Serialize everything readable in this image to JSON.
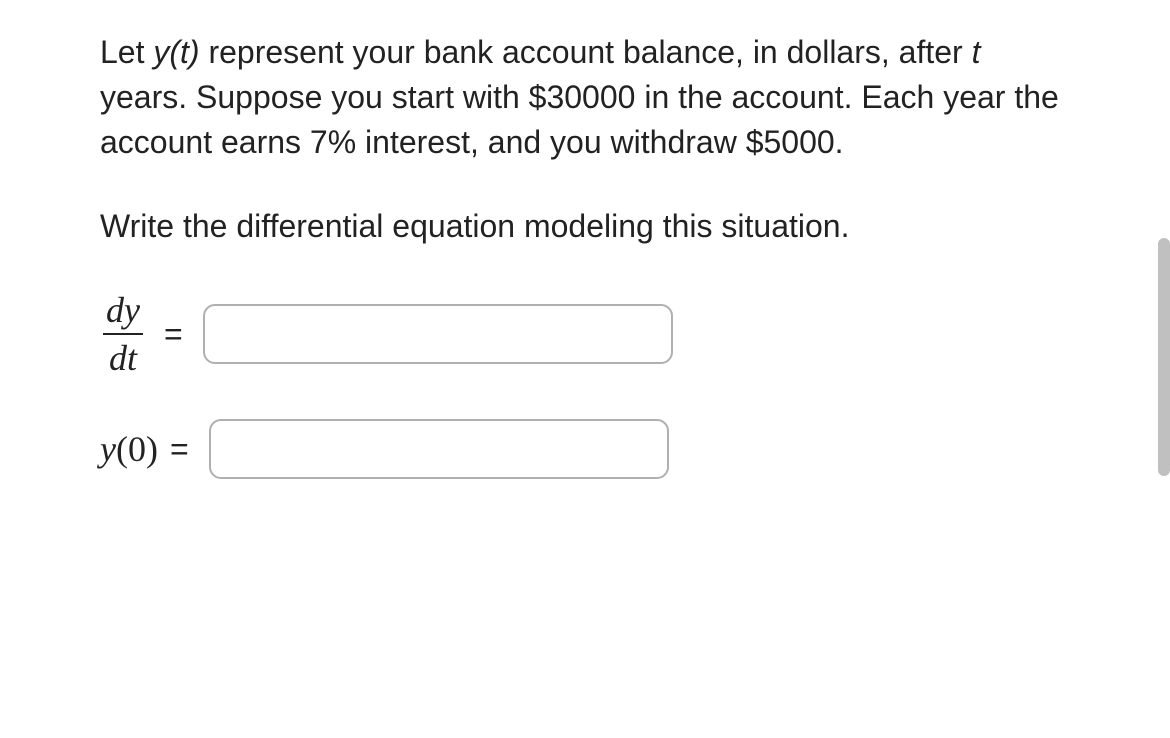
{
  "problem_text": {
    "part1": "Let ",
    "yt": "y(t)",
    "part2": " represent your bank account balance, in dollars, after ",
    "t": "t",
    "part3": " years. Suppose you start with $30000 in the account. Each year the account earns 7% interest, and you withdraw $5000."
  },
  "instruction": "Write the differential equation modeling this situation.",
  "equation1": {
    "numerator": "dy",
    "denominator": "dt",
    "equals": "=",
    "input_value": ""
  },
  "equation2": {
    "label_y": "y",
    "label_paren_open": "(",
    "label_zero": "0",
    "label_paren_close": ")",
    "equals": "=",
    "input_value": ""
  },
  "colors": {
    "background": "#ffffff",
    "text": "#222222",
    "input_border": "#b0b0b0",
    "scrollbar": "#c0c0c0"
  }
}
